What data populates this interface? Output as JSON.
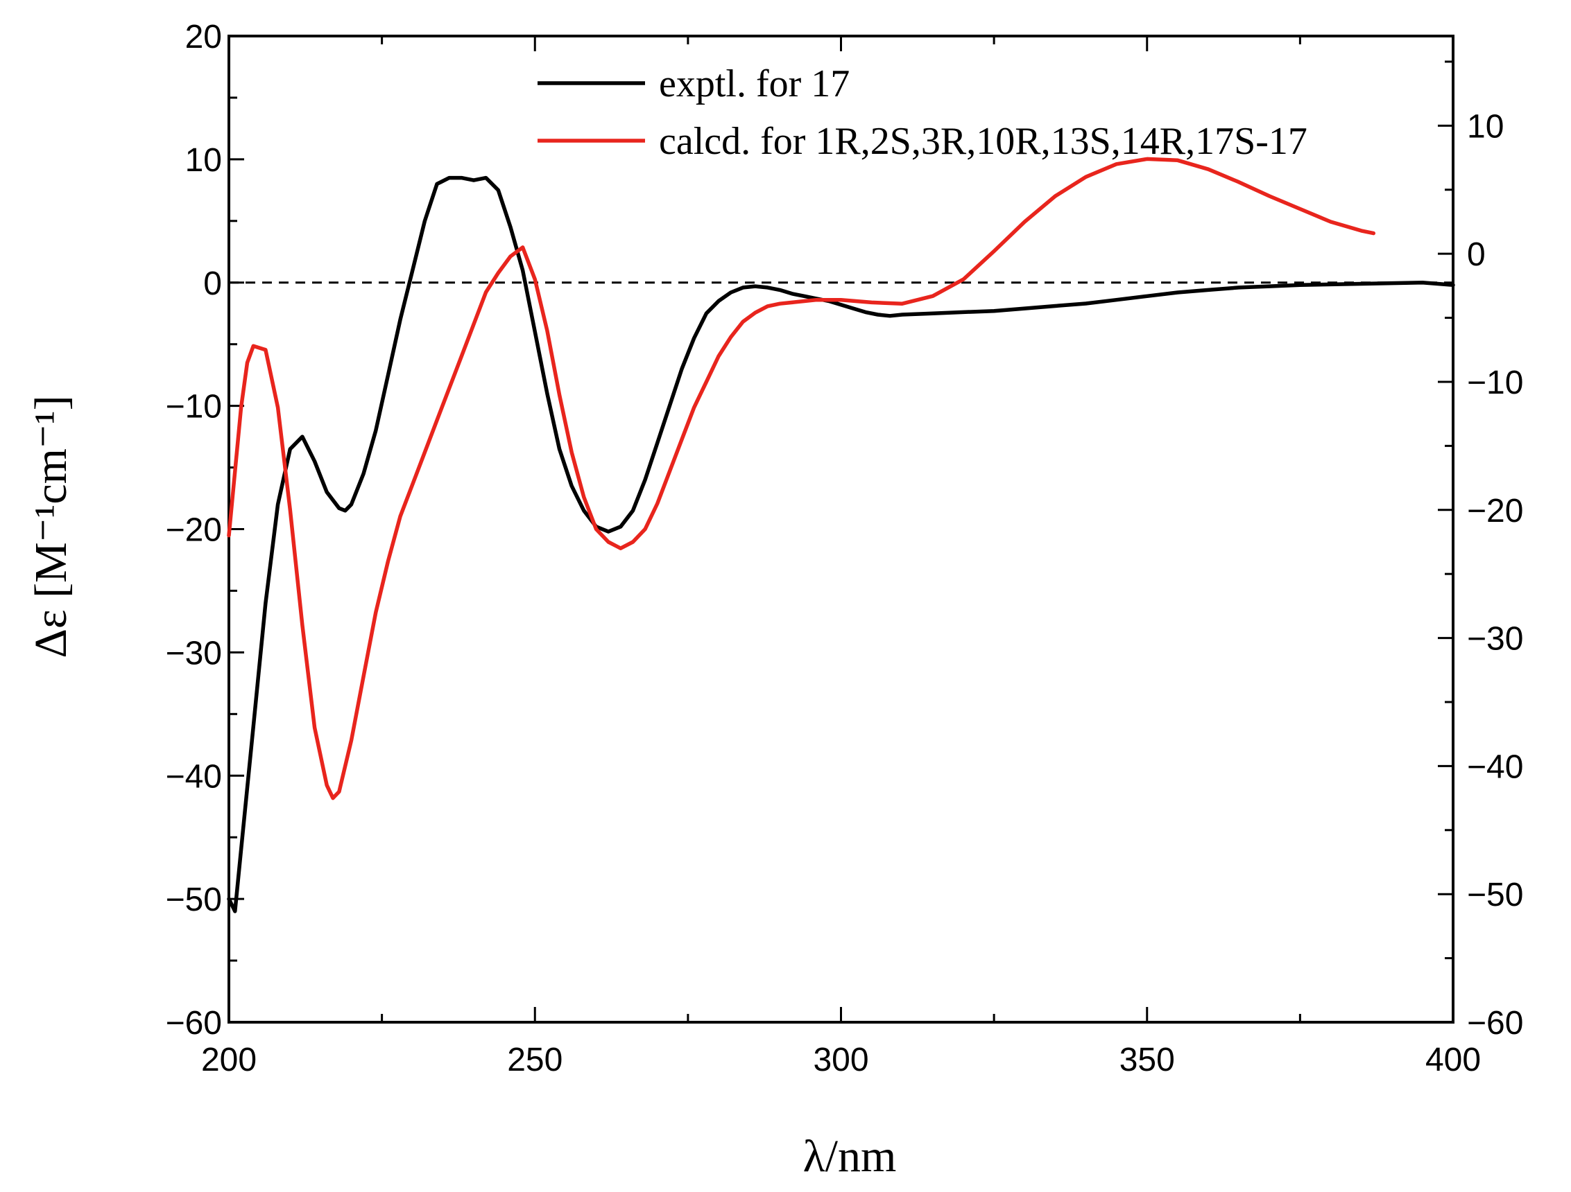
{
  "chart_data": {
    "type": "line",
    "xlabel": "λ/nm",
    "ylabel": "Δε [M⁻¹cm⁻¹]",
    "xlim": [
      200,
      400
    ],
    "ylim_left": [
      -60,
      20
    ],
    "ylim_right": [
      -60,
      17
    ],
    "x_ticks": [
      "200",
      "250",
      "300",
      "350",
      "400"
    ],
    "y_ticks_left": [
      "20",
      "10",
      "0",
      "−10",
      "−20",
      "−30",
      "−40",
      "−50",
      "−60"
    ],
    "y_ticks_right": [
      "10",
      "0",
      "−10",
      "−20",
      "−30",
      "−40",
      "−50",
      "−60"
    ],
    "zero_line": "dashed",
    "legend_position": "top-right",
    "series": [
      {
        "name": "exptl. for 17",
        "color": "#000000",
        "axis": "left",
        "x": [
          200,
          201,
          202,
          204,
          206,
          208,
          210,
          212,
          214,
          216,
          218,
          219,
          220,
          222,
          224,
          226,
          228,
          230,
          232,
          234,
          236,
          238,
          240,
          242,
          244,
          246,
          248,
          250,
          252,
          254,
          256,
          258,
          260,
          262,
          264,
          266,
          268,
          270,
          272,
          274,
          276,
          278,
          280,
          282,
          284,
          286,
          288,
          290,
          292,
          294,
          296,
          298,
          300,
          302,
          304,
          306,
          308,
          310,
          315,
          320,
          325,
          330,
          335,
          340,
          345,
          350,
          355,
          360,
          365,
          370,
          375,
          380,
          385,
          390,
          395,
          400
        ],
        "y": [
          -50,
          -51,
          -46,
          -36,
          -26,
          -18,
          -13.5,
          -12.5,
          -14.5,
          -17,
          -18.3,
          -18.5,
          -18,
          -15.5,
          -12,
          -7.5,
          -3,
          1,
          5,
          8,
          8.5,
          8.5,
          8.3,
          8.5,
          7.5,
          4.5,
          1,
          -4,
          -9,
          -13.5,
          -16.5,
          -18.5,
          -19.8,
          -20.2,
          -19.8,
          -18.5,
          -16,
          -13,
          -10,
          -7,
          -4.5,
          -2.5,
          -1.5,
          -0.8,
          -0.4,
          -0.3,
          -0.4,
          -0.6,
          -0.9,
          -1.1,
          -1.3,
          -1.5,
          -1.8,
          -2.1,
          -2.4,
          -2.6,
          -2.7,
          -2.6,
          -2.5,
          -2.4,
          -2.3,
          -2.1,
          -1.9,
          -1.7,
          -1.4,
          -1.1,
          -0.8,
          -0.6,
          -0.4,
          -0.3,
          -0.2,
          -0.15,
          -0.1,
          -0.05,
          0,
          -0.2
        ]
      },
      {
        "name": "calcd. for 1R,2S,3R,10R,13S,14R,17S-17",
        "color": "#e8251d",
        "axis": "right",
        "x": [
          200,
          201,
          202,
          203,
          204,
          206,
          208,
          210,
          212,
          214,
          216,
          217,
          218,
          219,
          220,
          222,
          224,
          226,
          228,
          230,
          232,
          234,
          236,
          238,
          240,
          242,
          244,
          246,
          248,
          250,
          252,
          254,
          256,
          258,
          260,
          262,
          264,
          266,
          268,
          270,
          272,
          274,
          276,
          278,
          280,
          282,
          284,
          286,
          288,
          290,
          292,
          294,
          296,
          298,
          300,
          305,
          310,
          315,
          320,
          325,
          330,
          335,
          340,
          345,
          350,
          355,
          360,
          365,
          370,
          375,
          380,
          385,
          387
        ],
        "y": [
          -22,
          -17,
          -12,
          -8.5,
          -7.2,
          -7.5,
          -12,
          -20,
          -29,
          -37,
          -41.5,
          -42.5,
          -42,
          -40,
          -38,
          -33,
          -28,
          -24,
          -20.5,
          -18,
          -15.5,
          -13,
          -10.5,
          -8,
          -5.5,
          -3,
          -1.5,
          -0.2,
          0.5,
          -2,
          -6,
          -11,
          -15.5,
          -19,
          -21.5,
          -22.5,
          -23,
          -22.5,
          -21.5,
          -19.5,
          -17,
          -14.5,
          -12,
          -10,
          -8,
          -6.5,
          -5.3,
          -4.6,
          -4.1,
          -3.9,
          -3.8,
          -3.7,
          -3.6,
          -3.6,
          -3.6,
          -3.8,
          -3.9,
          -3.3,
          -2,
          0.2,
          2.5,
          4.5,
          6.0,
          7.0,
          7.4,
          7.3,
          6.6,
          5.6,
          4.5,
          3.5,
          2.5,
          1.8,
          1.6
        ]
      }
    ]
  }
}
